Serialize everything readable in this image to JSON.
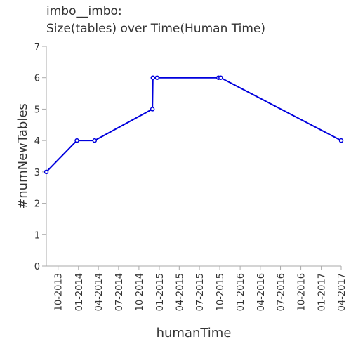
{
  "chart_data": {
    "type": "line",
    "title": "imbo__imbo:",
    "subtitle": "Size(tables) over Time(Human Time)",
    "xlabel": "humanTime",
    "ylabel": "#numNewTables",
    "ylim": [
      0,
      7
    ],
    "xlim": [
      "2013-08-09",
      "2017-04-01"
    ],
    "yticks": [
      0,
      1,
      2,
      3,
      4,
      5,
      6,
      7
    ],
    "xticks": [
      "10-2013",
      "01-2014",
      "04-2014",
      "07-2014",
      "10-2014",
      "01-2015",
      "04-2015",
      "07-2015",
      "10-2015",
      "01-2016",
      "04-2016",
      "07-2016",
      "10-2016",
      "01-2017",
      "04-2017"
    ],
    "grid": false,
    "line_color": "#0000dd",
    "series": [
      {
        "points": [
          {
            "x": "2013-08-09",
            "y": 3
          },
          {
            "x": "2013-12-25",
            "y": 4
          },
          {
            "x": "2014-03-15",
            "y": 4
          },
          {
            "x": "2014-12-01",
            "y": 5
          },
          {
            "x": "2014-12-03",
            "y": 6
          },
          {
            "x": "2014-12-22",
            "y": 6
          },
          {
            "x": "2015-09-25",
            "y": 6
          },
          {
            "x": "2015-10-05",
            "y": 6
          },
          {
            "x": "2017-04-01",
            "y": 4
          }
        ]
      }
    ]
  }
}
